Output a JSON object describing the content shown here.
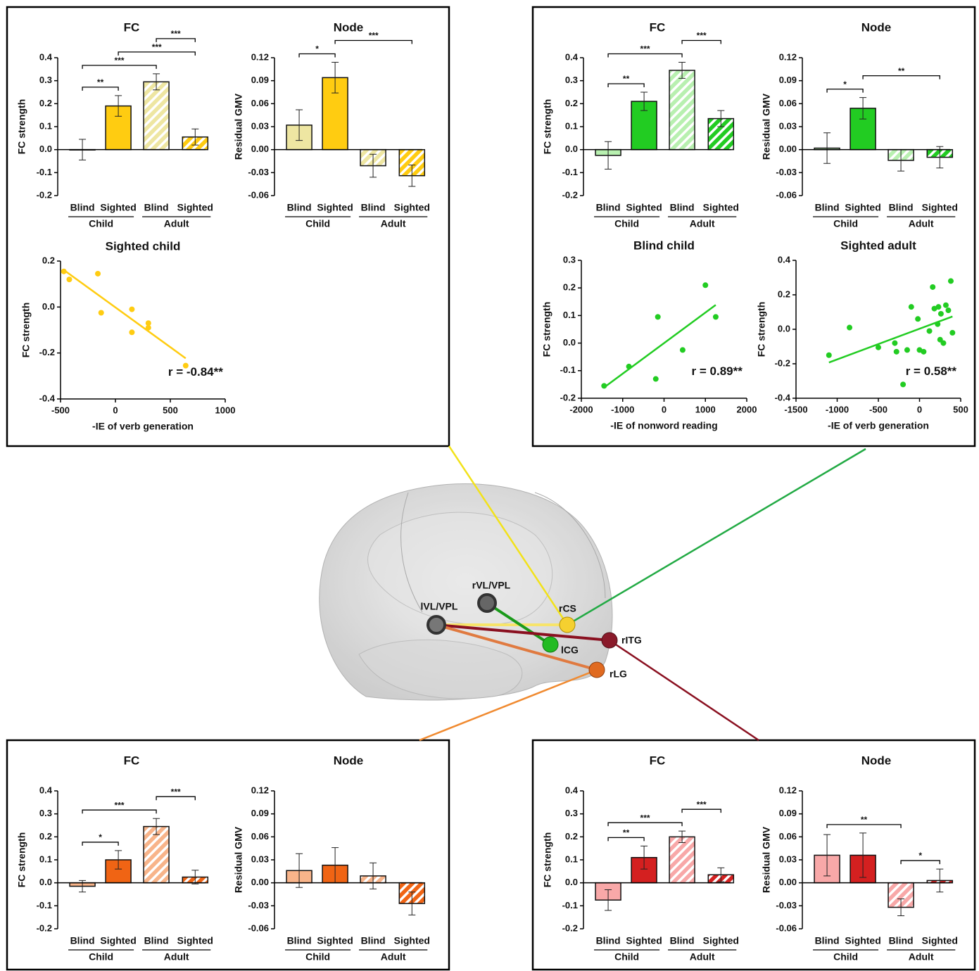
{
  "chart_data": [
    {
      "type": "bar",
      "title": "FC",
      "ylabel": "FC strength",
      "categories": [
        "Blind",
        "Sighted",
        "Blind",
        "Sighted"
      ],
      "groups": [
        "Child",
        "Adult"
      ],
      "values": [
        0.0,
        0.19,
        0.295,
        0.055
      ],
      "errors": [
        0.045,
        0.045,
        0.035,
        0.035
      ],
      "colors": [
        "#eee6a2",
        "#ffcc11",
        "#eee6a2",
        "#ffcc11"
      ],
      "hatched": [
        false,
        false,
        true,
        true
      ],
      "ylim": [
        -0.2,
        0.4
      ],
      "yticks": [
        -0.2,
        -0.1,
        {
          "value": 0,
          "label": "0.0"
        },
        0.1,
        0.2,
        0.3,
        0.4
      ],
      "brackets": [
        {
          "from": 0,
          "to": 1,
          "label": "**"
        },
        {
          "from": 0,
          "to": 2,
          "label": "***"
        },
        {
          "from": 1,
          "to": 3,
          "label": "***"
        },
        {
          "from": 2,
          "to": 3,
          "label": "***"
        }
      ]
    },
    {
      "type": "bar",
      "title": "Node",
      "ylabel": "Residual GMV",
      "categories": [
        "Blind",
        "Sighted",
        "Blind",
        "Sighted"
      ],
      "groups": [
        "Child",
        "Adult"
      ],
      "values": [
        0.032,
        0.094,
        -0.021,
        -0.034
      ],
      "errors": [
        0.02,
        0.02,
        0.015,
        0.014
      ],
      "colors": [
        "#eee6a2",
        "#ffcc11",
        "#eee6a2",
        "#ffcc11"
      ],
      "hatched": [
        false,
        false,
        true,
        true
      ],
      "ylim": [
        -0.06,
        0.12
      ],
      "yticks": [
        -0.06,
        -0.03,
        {
          "value": 0,
          "label": "0.00"
        },
        0.03,
        0.06,
        0.09,
        0.12
      ],
      "brackets": [
        {
          "from": 0,
          "to": 1,
          "label": "*"
        },
        {
          "from": 1,
          "to": 3,
          "label": "***"
        }
      ]
    },
    {
      "type": "scatter",
      "title": "Sighted child",
      "xlabel": "-IE of verb generation",
      "ylabel": "FC strength",
      "color": "#ffcc11",
      "x": [
        -470,
        -420,
        -160,
        -130,
        150,
        150,
        300,
        300,
        640
      ],
      "y": [
        0.155,
        0.12,
        0.145,
        -0.025,
        -0.01,
        -0.11,
        -0.07,
        -0.09,
        -0.255
      ],
      "xlim": [
        -500,
        1000
      ],
      "xticks": [
        -500,
        0,
        500,
        1000
      ],
      "ylim": [
        -0.4,
        0.2
      ],
      "yticks": [
        -0.4,
        -0.2,
        {
          "value": 0,
          "label": "0.0"
        },
        0.2
      ],
      "annotation": "r = -0.84**"
    },
    {
      "type": "bar",
      "title": "FC",
      "ylabel": "FC strength",
      "categories": [
        "Blind",
        "Sighted",
        "Blind",
        "Sighted"
      ],
      "groups": [
        "Child",
        "Adult"
      ],
      "values": [
        -0.025,
        0.21,
        0.345,
        0.135
      ],
      "errors": [
        0.06,
        0.04,
        0.035,
        0.035
      ],
      "colors": [
        "#b8f0b0",
        "#22cc22",
        "#b8f0b0",
        "#22cc22"
      ],
      "hatched": [
        false,
        false,
        true,
        true
      ],
      "ylim": [
        -0.2,
        0.4
      ],
      "yticks": [
        -0.2,
        -0.1,
        {
          "value": 0,
          "label": "0.0"
        },
        0.1,
        0.2,
        0.3,
        0.4
      ],
      "brackets": [
        {
          "from": 0,
          "to": 1,
          "label": "**"
        },
        {
          "from": 0,
          "to": 2,
          "label": "***"
        },
        {
          "from": 2,
          "to": 3,
          "label": "***"
        }
      ]
    },
    {
      "type": "bar",
      "title": "Node",
      "ylabel": "Residual GMV",
      "categories": [
        "Blind",
        "Sighted",
        "Blind",
        "Sighted"
      ],
      "groups": [
        "Child",
        "Adult"
      ],
      "values": [
        0.002,
        0.054,
        -0.014,
        -0.01
      ],
      "errors": [
        0.02,
        0.014,
        0.014,
        0.014
      ],
      "colors": [
        "#b8f0b0",
        "#22cc22",
        "#b8f0b0",
        "#22cc22"
      ],
      "hatched": [
        false,
        false,
        true,
        true
      ],
      "ylim": [
        -0.06,
        0.12
      ],
      "yticks": [
        -0.06,
        -0.03,
        {
          "value": 0,
          "label": "0.00"
        },
        0.03,
        0.06,
        0.09,
        0.12
      ],
      "brackets": [
        {
          "from": 0,
          "to": 1,
          "label": "*"
        },
        {
          "from": 1,
          "to": 3,
          "label": "**"
        }
      ]
    },
    {
      "type": "scatter",
      "title": "Blind child",
      "xlabel": "-IE of nonword reading",
      "ylabel": "FC strength",
      "color": "#22cc22",
      "x": [
        -1450,
        -850,
        -150,
        -200,
        450,
        1000,
        1250
      ],
      "y": [
        -0.155,
        -0.085,
        0.095,
        -0.13,
        -0.025,
        0.21,
        0.095
      ],
      "xlim": [
        -2000,
        2000
      ],
      "xticks": [
        -2000,
        -1000,
        0,
        1000,
        2000
      ],
      "ylim": [
        -0.2,
        0.3
      ],
      "yticks": [
        -0.2,
        -0.1,
        {
          "value": 0,
          "label": "0.0"
        },
        0.1,
        0.2,
        0.3
      ],
      "annotation": "r = 0.89**"
    },
    {
      "type": "scatter",
      "title": "Sighted adult",
      "xlabel": "-IE of verb generation",
      "ylabel": "FC strength",
      "color": "#22cc22",
      "x": [
        -1100,
        -850,
        -500,
        -300,
        -280,
        -200,
        -150,
        -100,
        -20,
        0,
        50,
        120,
        160,
        180,
        220,
        230,
        260,
        250,
        290,
        320,
        350,
        380,
        400
      ],
      "y": [
        -0.15,
        0.01,
        -0.105,
        -0.08,
        -0.13,
        -0.32,
        -0.12,
        0.13,
        0.06,
        -0.12,
        -0.13,
        -0.01,
        0.245,
        0.12,
        0.03,
        0.13,
        0.09,
        -0.06,
        -0.08,
        0.14,
        0.11,
        0.28,
        -0.02
      ],
      "xlim": [
        -1500,
        500
      ],
      "xticks": [
        -1500,
        -1000,
        -500,
        0,
        500
      ],
      "ylim": [
        -0.4,
        0.4
      ],
      "yticks": [
        -0.4,
        -0.2,
        {
          "value": 0,
          "label": "0.0"
        },
        0.2,
        0.4
      ],
      "annotation": "r = 0.58**"
    },
    {
      "type": "bar",
      "title": "FC",
      "ylabel": "FC strength",
      "categories": [
        "Blind",
        "Sighted",
        "Blind",
        "Sighted"
      ],
      "groups": [
        "Child",
        "Adult"
      ],
      "values": [
        -0.015,
        0.1,
        0.245,
        0.025
      ],
      "errors": [
        0.025,
        0.04,
        0.035,
        0.03
      ],
      "colors": [
        "#f8b48a",
        "#f06414",
        "#f8b48a",
        "#f06414"
      ],
      "hatched": [
        false,
        false,
        true,
        true
      ],
      "ylim": [
        -0.2,
        0.4
      ],
      "yticks": [
        -0.2,
        -0.1,
        {
          "value": 0,
          "label": "0.0"
        },
        0.1,
        0.2,
        0.3,
        0.4
      ],
      "brackets": [
        {
          "from": 0,
          "to": 1,
          "label": "*"
        },
        {
          "from": 0,
          "to": 2,
          "label": "***"
        },
        {
          "from": 2,
          "to": 3,
          "label": "***"
        }
      ]
    },
    {
      "type": "bar",
      "title": "Node",
      "ylabel": "Residual GMV",
      "categories": [
        "Blind",
        "Sighted",
        "Blind",
        "Sighted"
      ],
      "groups": [
        "Child",
        "Adult"
      ],
      "values": [
        0.016,
        0.023,
        0.009,
        -0.027
      ],
      "errors": [
        0.022,
        0.023,
        0.017,
        0.015
      ],
      "colors": [
        "#f8b48a",
        "#f06414",
        "#f8b48a",
        "#f06414"
      ],
      "hatched": [
        false,
        false,
        true,
        true
      ],
      "ylim": [
        -0.06,
        0.12
      ],
      "yticks": [
        -0.06,
        -0.03,
        {
          "value": 0,
          "label": "0.00"
        },
        0.03,
        0.06,
        0.09,
        0.12
      ],
      "brackets": []
    },
    {
      "type": "bar",
      "title": "FC",
      "ylabel": "FC strength",
      "categories": [
        "Blind",
        "Sighted",
        "Blind",
        "Sighted"
      ],
      "groups": [
        "Child",
        "Adult"
      ],
      "values": [
        -0.075,
        0.11,
        0.2,
        0.035
      ],
      "errors": [
        0.045,
        0.05,
        0.025,
        0.03
      ],
      "colors": [
        "#f8a8a8",
        "#d42020",
        "#f8a8a8",
        "#d42020"
      ],
      "hatched": [
        false,
        false,
        true,
        true
      ],
      "ylim": [
        -0.2,
        0.4
      ],
      "yticks": [
        -0.2,
        -0.1,
        {
          "value": 0,
          "label": "0.0"
        },
        0.1,
        0.2,
        0.3,
        0.4
      ],
      "brackets": [
        {
          "from": 0,
          "to": 1,
          "label": "**"
        },
        {
          "from": 0,
          "to": 2,
          "label": "***"
        },
        {
          "from": 2,
          "to": 3,
          "label": "***"
        }
      ]
    },
    {
      "type": "bar",
      "title": "Node",
      "ylabel": "Residual GMV",
      "categories": [
        "Blind",
        "Sighted",
        "Blind",
        "Sighted"
      ],
      "groups": [
        "Child",
        "Adult"
      ],
      "values": [
        0.036,
        0.036,
        -0.032,
        0.003
      ],
      "errors": [
        0.027,
        0.029,
        0.011,
        0.015
      ],
      "colors": [
        "#f8a8a8",
        "#d42020",
        "#f8a8a8",
        "#d42020"
      ],
      "hatched": [
        false,
        false,
        true,
        true
      ],
      "ylim": [
        -0.06,
        0.12
      ],
      "yticks": [
        -0.06,
        -0.03,
        {
          "value": 0,
          "label": "0.00"
        },
        0.03,
        0.06,
        0.09,
        0.12
      ],
      "brackets": [
        {
          "from": 0,
          "to": 2,
          "label": "**"
        },
        {
          "from": 2,
          "to": 3,
          "label": "*"
        }
      ]
    }
  ],
  "diagram": {
    "nodes": [
      {
        "label": "rVL/VPL"
      },
      {
        "label": "lVL/VPL"
      },
      {
        "label": "rCS"
      },
      {
        "label": "lCG"
      },
      {
        "label": "rITG"
      },
      {
        "label": "rLG"
      }
    ]
  }
}
